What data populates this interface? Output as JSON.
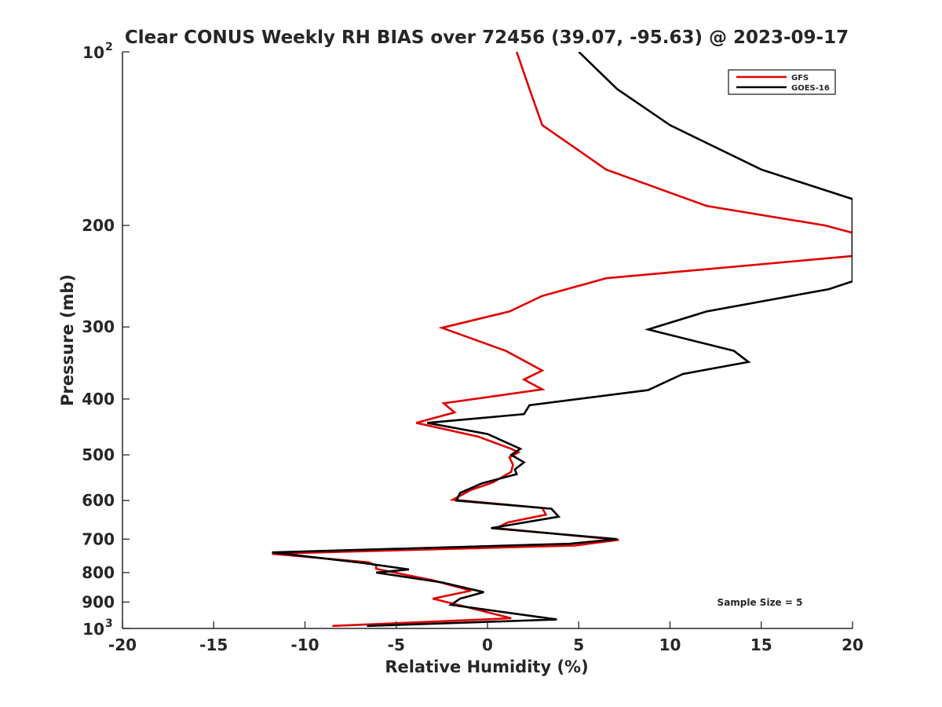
{
  "chart_data": {
    "type": "line",
    "title": "Clear CONUS Weekly RH BIAS over 72456 (39.07, -95.63) @ 2023-09-17",
    "xlabel": "Relative Humidity (%)",
    "ylabel": "Pressure (mb)",
    "xlim": [
      -20,
      20
    ],
    "ylim": [
      100,
      1000
    ],
    "yscale": "log",
    "x_ticks": [
      -20,
      -15,
      -10,
      -5,
      0,
      5,
      10,
      15,
      20
    ],
    "x_tick_labels": [
      "-20",
      "-15",
      "-10",
      "-5",
      "0",
      "5",
      "10",
      "15",
      "20"
    ],
    "y_ticks": [
      200,
      300,
      400,
      500,
      600,
      700,
      800,
      900
    ],
    "y_tick_labels": [
      "200",
      "300",
      "400",
      "500",
      "600",
      "700",
      "800",
      "900"
    ],
    "y_top_label": {
      "base": "10",
      "exp": "2"
    },
    "y_bottom_label": {
      "base": "10",
      "exp": "3"
    },
    "legend_position": "top-right",
    "annotation": "Sample Size = 5",
    "series": [
      {
        "name": "GFS",
        "color": "#e00000",
        "points": [
          [
            1.6,
            100
          ],
          [
            2.3,
            116
          ],
          [
            3.0,
            134
          ],
          [
            6.5,
            160
          ],
          [
            12.0,
            185
          ],
          [
            18.5,
            200
          ],
          [
            20.0,
            206
          ],
          [
            20.0,
            226
          ],
          [
            6.5,
            247
          ],
          [
            3.0,
            265
          ],
          [
            1.2,
            282
          ],
          [
            -2.5,
            301
          ],
          [
            1.0,
            330
          ],
          [
            3.0,
            357
          ],
          [
            2.0,
            370
          ],
          [
            3.0,
            385
          ],
          [
            -2.4,
            407
          ],
          [
            -1.8,
            422
          ],
          [
            -3.9,
            440
          ],
          [
            -0.5,
            465
          ],
          [
            1.3,
            488
          ],
          [
            1.7,
            495
          ],
          [
            1.2,
            505
          ],
          [
            1.4,
            520
          ],
          [
            1.3,
            535
          ],
          [
            0.3,
            558
          ],
          [
            -0.9,
            575
          ],
          [
            -1.9,
            598
          ],
          [
            3.0,
            618
          ],
          [
            3.2,
            635
          ],
          [
            1.1,
            655
          ],
          [
            0.5,
            670
          ],
          [
            7.2,
            702
          ],
          [
            4.8,
            718
          ],
          [
            -11.8,
            742
          ],
          [
            -6.5,
            768
          ],
          [
            -6.1,
            778
          ],
          [
            -6.1,
            788
          ],
          [
            -3.0,
            825
          ],
          [
            -0.9,
            860
          ],
          [
            -3.0,
            888
          ],
          [
            -1.2,
            917
          ],
          [
            1.3,
            960
          ],
          [
            -8.5,
            990
          ]
        ]
      },
      {
        "name": "GOES-16",
        "color": "#000000",
        "points": [
          [
            5.0,
            100
          ],
          [
            7.1,
            116
          ],
          [
            10.0,
            134
          ],
          [
            15.0,
            160
          ],
          [
            20.0,
            180
          ],
          [
            20.0,
            250
          ],
          [
            18.7,
            258
          ],
          [
            12.0,
            282
          ],
          [
            8.8,
            303
          ],
          [
            13.5,
            330
          ],
          [
            14.3,
            345
          ],
          [
            10.7,
            362
          ],
          [
            8.8,
            386
          ],
          [
            2.3,
            410
          ],
          [
            2.0,
            425
          ],
          [
            -3.3,
            440
          ],
          [
            0.0,
            460
          ],
          [
            1.8,
            488
          ],
          [
            1.3,
            500
          ],
          [
            2.0,
            515
          ],
          [
            1.5,
            530
          ],
          [
            1.6,
            540
          ],
          [
            -0.3,
            560
          ],
          [
            -1.5,
            582
          ],
          [
            -1.7,
            600
          ],
          [
            3.5,
            620
          ],
          [
            3.9,
            640
          ],
          [
            0.2,
            670
          ],
          [
            7.1,
            700
          ],
          [
            4.5,
            713
          ],
          [
            -11.8,
            738
          ],
          [
            -6.8,
            770
          ],
          [
            -4.3,
            790
          ],
          [
            -6.1,
            800
          ],
          [
            -2.5,
            832
          ],
          [
            -0.2,
            865
          ],
          [
            -1.5,
            888
          ],
          [
            -2.0,
            910
          ],
          [
            3.8,
            965
          ],
          [
            -6.6,
            990
          ]
        ]
      }
    ]
  }
}
